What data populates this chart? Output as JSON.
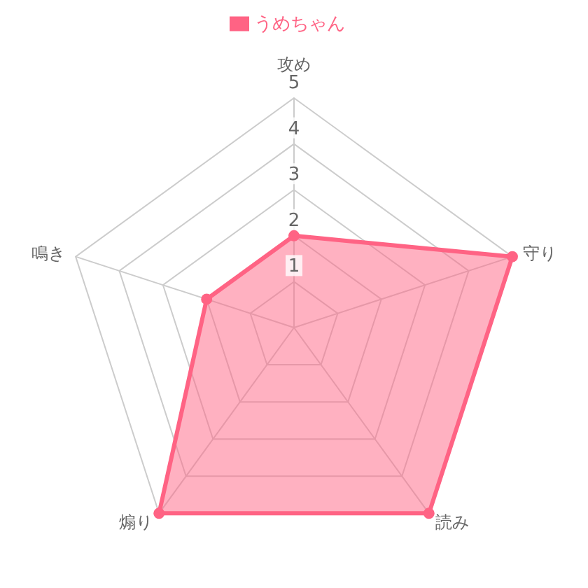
{
  "chart_data": {
    "type": "radar",
    "categories": [
      "攻め",
      "守り",
      "読み",
      "煽り",
      "鳴き"
    ],
    "series": [
      {
        "name": "うめちゃん",
        "color": "#ff6384",
        "values": [
          2,
          5,
          5,
          5,
          2
        ]
      }
    ],
    "ylim": [
      0,
      5
    ],
    "yticks": [
      1,
      2,
      3,
      4,
      5
    ],
    "grid": true,
    "legend": "top",
    "marker": "circle"
  }
}
